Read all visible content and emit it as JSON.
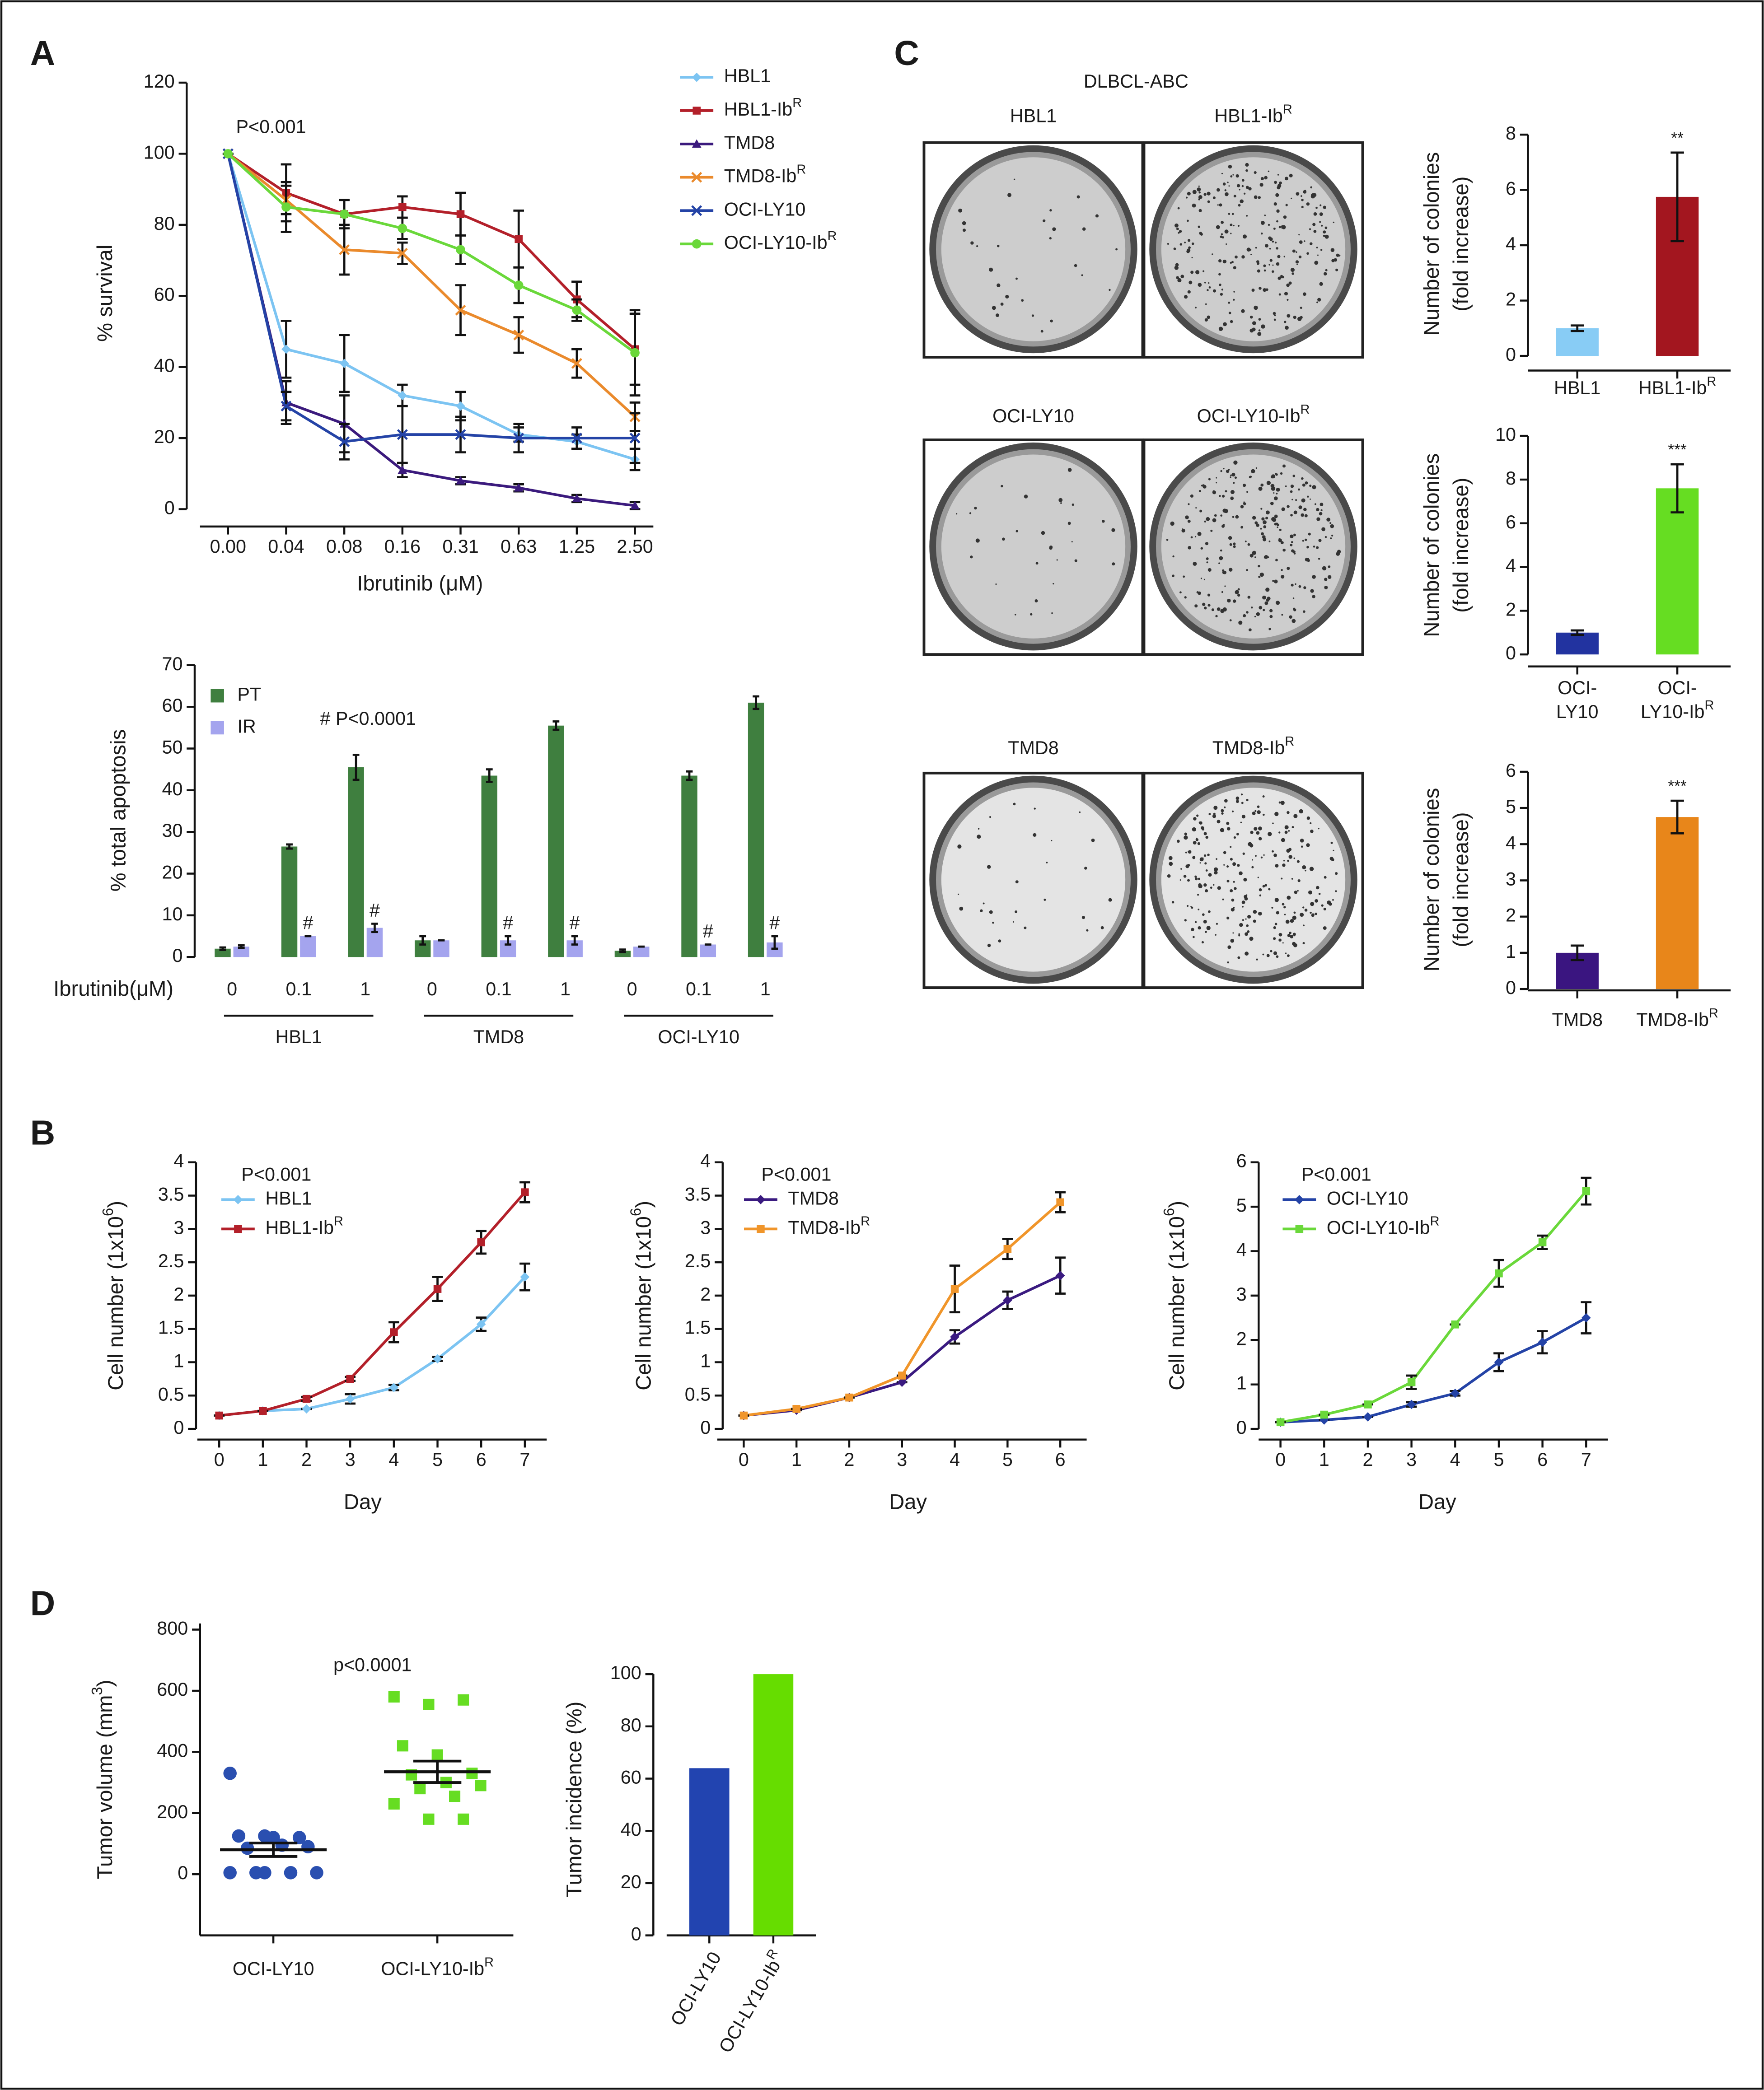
{
  "chart_data": [
    {
      "type": "line",
      "panel": "A",
      "categories": [
        "0.00",
        "0.04",
        "0.08",
        "0.16",
        "0.31",
        "0.63",
        "1.25",
        "2.50"
      ],
      "xlabel": "Ibrutinib (μM)",
      "ylabel": "% survival",
      "annotation": "P<0.001",
      "ylim": [
        0,
        120
      ],
      "yticks": [
        0,
        20,
        40,
        60,
        80,
        100,
        120
      ],
      "legend": "right",
      "series": [
        {
          "name": "HBL1",
          "color": "#7cc4f2",
          "marker": "diamond",
          "values": [
            100,
            45,
            41,
            32,
            29,
            21,
            19,
            14
          ],
          "errors": [
            0,
            8,
            8,
            3,
            4,
            2,
            2,
            3
          ]
        },
        {
          "name": "HBL1-IbR",
          "color": "#b3202a",
          "marker": "square",
          "values": [
            100,
            89,
            83,
            85,
            83,
            76,
            59,
            45
          ],
          "errors": [
            0,
            8,
            4,
            3,
            6,
            8,
            5,
            10
          ]
        },
        {
          "name": "TMD8",
          "color": "#3b1a7d",
          "marker": "triangle",
          "values": [
            100,
            30,
            24,
            11,
            8,
            6,
            3,
            1
          ],
          "errors": [
            0,
            6,
            8,
            2,
            1,
            1,
            1,
            1
          ]
        },
        {
          "name": "TMD8-IbR",
          "color": "#ea8a2c",
          "marker": "x",
          "values": [
            100,
            87,
            73,
            72,
            56,
            49,
            41,
            26
          ],
          "errors": [
            0,
            4,
            7,
            3,
            7,
            5,
            4,
            4
          ]
        },
        {
          "name": "OCI-LY10",
          "color": "#2443a6",
          "marker": "x",
          "values": [
            100,
            29,
            19,
            21,
            21,
            20,
            20,
            20
          ],
          "errors": [
            0,
            4,
            5,
            8,
            5,
            4,
            3,
            7
          ]
        },
        {
          "name": "OCI-LY10-IbR",
          "color": "#6ad83a",
          "marker": "circle",
          "values": [
            100,
            85,
            83,
            79,
            73,
            63,
            56,
            44
          ],
          "errors": [
            0,
            7,
            4,
            3,
            4,
            5,
            3,
            12
          ]
        }
      ]
    },
    {
      "type": "bar",
      "categories": [
        "0",
        "0.1",
        "1",
        "0",
        "0.1",
        "1",
        "0",
        "0.1",
        "1"
      ],
      "groups": [
        "HBL1",
        "TMD8",
        "OCI-LY10"
      ],
      "xlabel": "Ibrutinib(μM)",
      "ylabel": "% total apoptosis",
      "annotation": "# P<0.0001",
      "ylim": [
        0,
        70
      ],
      "yticks": [
        0,
        10,
        20,
        30,
        40,
        50,
        60,
        70
      ],
      "legend": "top-left",
      "series": [
        {
          "name": "PT",
          "color": "#3f7f3f",
          "values": [
            2,
            26.5,
            45.5,
            4,
            43.5,
            55.5,
            1.5,
            43.5,
            61
          ],
          "errors": [
            0.3,
            0.5,
            3,
            1,
            1.5,
            1,
            0.3,
            1,
            1.5
          ]
        },
        {
          "name": "IR",
          "color": "#a4a4ee",
          "values": [
            2.5,
            5,
            7,
            4,
            4,
            4,
            2.5,
            3,
            3.5
          ],
          "errors": [
            0.3,
            0,
            1,
            0,
            1,
            1,
            0,
            0,
            1.5
          ],
          "labels": [
            null,
            "#",
            "#",
            null,
            "#",
            "#",
            null,
            "#",
            "#"
          ]
        }
      ]
    },
    {
      "type": "bar",
      "panel": "C",
      "image_title": "DLBCL-ABC",
      "image_labels": [
        "HBL1",
        "HBL1-IbR"
      ],
      "categories": [
        "HBL1",
        "HBL1-IbR"
      ],
      "values": [
        1,
        5.75
      ],
      "errors": [
        0.1,
        1.6
      ],
      "colors": [
        "#88ccf5",
        "#a3161f"
      ],
      "significance": [
        null,
        "**"
      ],
      "ylabel": [
        "Number of colonies",
        "(fold increase)"
      ],
      "ylim": [
        0,
        8
      ],
      "yticks": [
        0,
        2,
        4,
        6,
        8
      ]
    },
    {
      "type": "bar",
      "image_labels": [
        "OCI-LY10",
        "OCI-LY10-IbR"
      ],
      "categories": [
        [
          "OCI-",
          "LY10"
        ],
        [
          "OCI-",
          "LY10-IbR"
        ]
      ],
      "values": [
        1,
        7.6
      ],
      "errors": [
        0.1,
        1.1
      ],
      "colors": [
        "#2233a0",
        "#66dd22"
      ],
      "significance": [
        null,
        "***"
      ],
      "ylabel": [
        "Number of colonies",
        "(fold increase)"
      ],
      "ylim": [
        0,
        10
      ],
      "yticks": [
        0,
        2,
        4,
        6,
        8,
        10
      ]
    },
    {
      "type": "bar",
      "image_labels": [
        "TMD8",
        "TMD8-IbR"
      ],
      "categories": [
        "TMD8",
        "TMD8-IbR"
      ],
      "values": [
        1,
        4.75
      ],
      "errors": [
        0.2,
        0.45
      ],
      "colors": [
        "#3a1580",
        "#e8861a"
      ],
      "significance": [
        null,
        "***"
      ],
      "ylabel": [
        "Number of colonies",
        "(fold increase)"
      ],
      "ylim": [
        0,
        6
      ],
      "yticks": [
        0,
        1,
        2,
        3,
        4,
        5,
        6
      ]
    },
    {
      "type": "line",
      "panel": "B",
      "x": [
        0,
        1,
        2,
        3,
        4,
        5,
        6,
        7
      ],
      "xlabel": "Day",
      "ylabel": "Cell number (1x106)",
      "annotation": "P<0.001",
      "xlim": [
        -0.5,
        7.5
      ],
      "xticks": [
        0,
        1,
        2,
        3,
        4,
        5,
        6,
        7
      ],
      "ylim": [
        0,
        4
      ],
      "yticks": [
        0,
        0.5,
        1,
        1.5,
        2,
        2.5,
        3,
        3.5,
        4
      ],
      "legend": "top-left",
      "series": [
        {
          "name": "HBL1",
          "color": "#7cc4f2",
          "marker": "diamond",
          "values": [
            0.2,
            0.27,
            0.3,
            0.45,
            0.62,
            1.05,
            1.57,
            2.28
          ],
          "errors": [
            0,
            0,
            0,
            0.07,
            0.04,
            0.03,
            0.1,
            0.2
          ]
        },
        {
          "name": "HBL1-IbR",
          "color": "#b3202a",
          "marker": "square",
          "values": [
            0.2,
            0.27,
            0.45,
            0.75,
            1.45,
            2.1,
            2.8,
            3.55
          ],
          "errors": [
            0,
            0,
            0.03,
            0.03,
            0.15,
            0.18,
            0.17,
            0.15
          ]
        }
      ]
    },
    {
      "type": "line",
      "x": [
        0,
        1,
        2,
        3,
        4,
        5,
        6
      ],
      "xlabel": "Day",
      "ylabel": "Cell number (1x106)",
      "annotation": "P<0.001",
      "xlim": [
        -0.5,
        6.5
      ],
      "xticks": [
        0,
        1,
        2,
        3,
        4,
        5,
        6
      ],
      "ylim": [
        0,
        4
      ],
      "yticks": [
        0,
        0.5,
        1,
        1.5,
        2,
        2.5,
        3,
        3.5,
        4
      ],
      "legend": "top-left",
      "series": [
        {
          "name": "TMD8",
          "color": "#3a1a80",
          "marker": "diamond",
          "values": [
            0.2,
            0.28,
            0.47,
            0.7,
            1.38,
            1.93,
            2.3
          ],
          "errors": [
            0,
            0,
            0,
            0,
            0.1,
            0.13,
            0.27
          ]
        },
        {
          "name": "TMD8-IbR",
          "color": "#f0952a",
          "marker": "square",
          "values": [
            0.2,
            0.3,
            0.47,
            0.8,
            2.1,
            2.7,
            3.4
          ],
          "errors": [
            0,
            0,
            0,
            0,
            0.35,
            0.15,
            0.15
          ]
        }
      ]
    },
    {
      "type": "line",
      "x": [
        0,
        1,
        2,
        3,
        4,
        5,
        6,
        7
      ],
      "xlabel": "Day",
      "ylabel": "Cell number (1x106)",
      "annotation": "P<0.001",
      "xlim": [
        -0.5,
        7.5
      ],
      "xticks": [
        0,
        1,
        2,
        3,
        4,
        5,
        6,
        7
      ],
      "ylim": [
        0,
        6
      ],
      "yticks": [
        0,
        1,
        2,
        3,
        4,
        5,
        6
      ],
      "legend": "top-left",
      "series": [
        {
          "name": "OCI-LY10",
          "color": "#2443a6",
          "marker": "diamond",
          "values": [
            0.15,
            0.2,
            0.27,
            0.55,
            0.8,
            1.5,
            1.95,
            2.5
          ],
          "errors": [
            0,
            0,
            0,
            0.05,
            0.05,
            0.2,
            0.25,
            0.35
          ]
        },
        {
          "name": "OCI-LY10-IbR",
          "color": "#6ad83a",
          "marker": "square",
          "values": [
            0.15,
            0.32,
            0.55,
            1.05,
            2.35,
            3.5,
            4.2,
            5.35
          ],
          "errors": [
            0,
            0,
            0,
            0.15,
            0,
            0.3,
            0.15,
            0.3
          ]
        }
      ]
    },
    {
      "type": "dotplot",
      "panel": "D",
      "categories": [
        "OCI-LY10",
        "OCI-LY10-IbR"
      ],
      "colors": [
        "#2a4fb0",
        "#66dd22"
      ],
      "markers": [
        "circle",
        "square"
      ],
      "values": [
        [
          330,
          125,
          120,
          125,
          120,
          90,
          85,
          95,
          5,
          5,
          5,
          5,
          5
        ],
        [
          580,
          555,
          570,
          420,
          390,
          330,
          325,
          300,
          290,
          280,
          255,
          230,
          180,
          180
        ]
      ],
      "means": [
        80,
        335
      ],
      "sem": [
        22,
        35
      ],
      "ylabel": "Tumor volume (mm3)",
      "annotation": "p<0.0001",
      "ylim": [
        -200,
        820
      ],
      "yticks": [
        0,
        200,
        400,
        600,
        800
      ]
    },
    {
      "type": "bar",
      "categories": [
        "OCI-LY10",
        "OCI-LY10-IbR"
      ],
      "values": [
        64,
        100
      ],
      "colors": [
        "#2244b0",
        "#66dd00"
      ],
      "ylabel": "Tumor incidence (%)",
      "ylim": [
        0,
        100
      ],
      "yticks": [
        0,
        20,
        40,
        60,
        80,
        100
      ]
    }
  ]
}
